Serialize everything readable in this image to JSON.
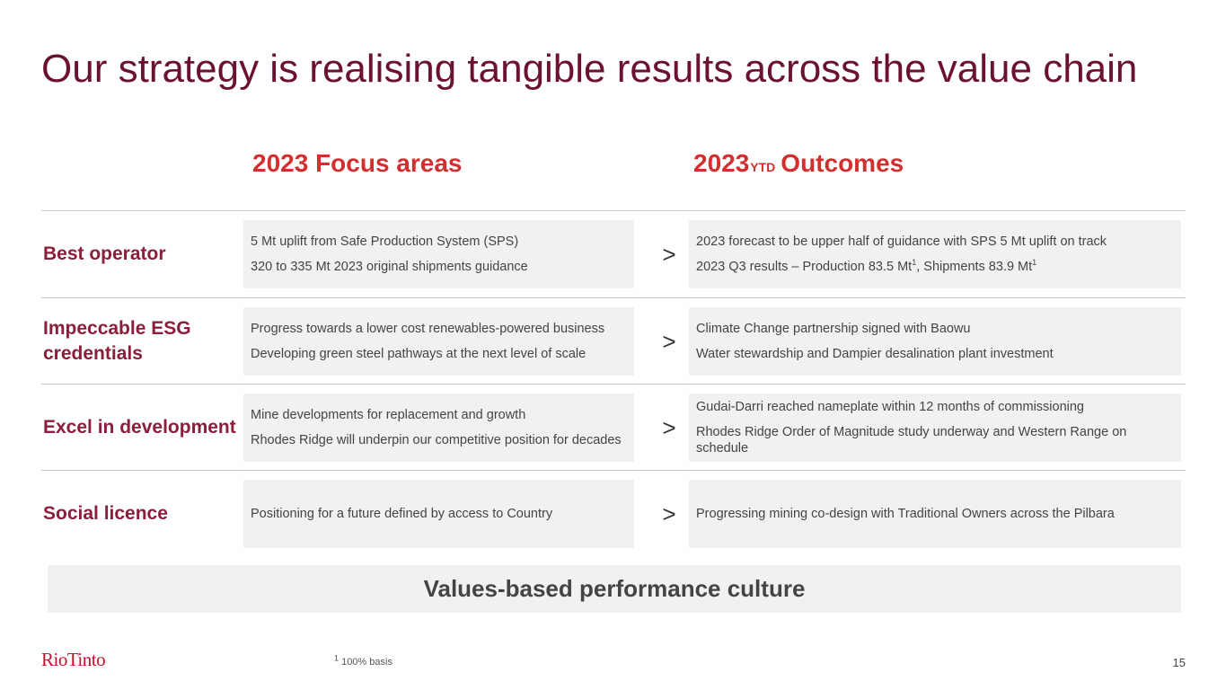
{
  "title": "Our strategy is realising tangible results across the value chain",
  "headers": {
    "focus": "2023 Focus areas",
    "outcomes_year": "2023",
    "outcomes_sub": "YTD",
    "outcomes_label": "Outcomes"
  },
  "arrow": ">",
  "rows": [
    {
      "label": "Best operator",
      "focus": [
        "5 Mt uplift from Safe Production System (SPS)",
        "320 to 335 Mt 2023 original shipments guidance"
      ],
      "outcome_1": "2023 forecast to be upper half of guidance with SPS 5 Mt uplift on track",
      "outcome_2a": "2023 Q3 results – Production 83.5 Mt",
      "outcome_2b": ", Shipments 83.9 Mt",
      "sup": "1"
    },
    {
      "label": "Impeccable ESG credentials",
      "focus": [
        "Progress towards a lower cost renewables-powered business",
        "Developing green steel pathways at the next level of scale"
      ],
      "outcomes": [
        "Climate Change partnership signed with Baowu",
        "Water stewardship and Dampier desalination plant investment"
      ]
    },
    {
      "label": "Excel in development",
      "focus": [
        "Mine developments for replacement and growth",
        "Rhodes Ridge will underpin our competitive position for decades"
      ],
      "outcomes": [
        "Gudai-Darri reached nameplate within 12 months of commissioning",
        "Rhodes Ridge Order of Magnitude study underway and Western Range on schedule"
      ]
    },
    {
      "label": "Social licence",
      "focus": [
        "Positioning for a future defined by access to Country"
      ],
      "outcomes": [
        "Progressing mining co-design with Traditional Owners across the Pilbara"
      ]
    }
  ],
  "banner": "Values-based performance culture",
  "footer": {
    "logo": "RioTinto",
    "footnote_sup": "1",
    "footnote": " 100% basis",
    "page": "15"
  },
  "colors": {
    "title": "#6b1230",
    "header": "#d32f2f",
    "label": "#8a1e3b",
    "box": "#f2f1ef",
    "logo": "#c8102e"
  }
}
